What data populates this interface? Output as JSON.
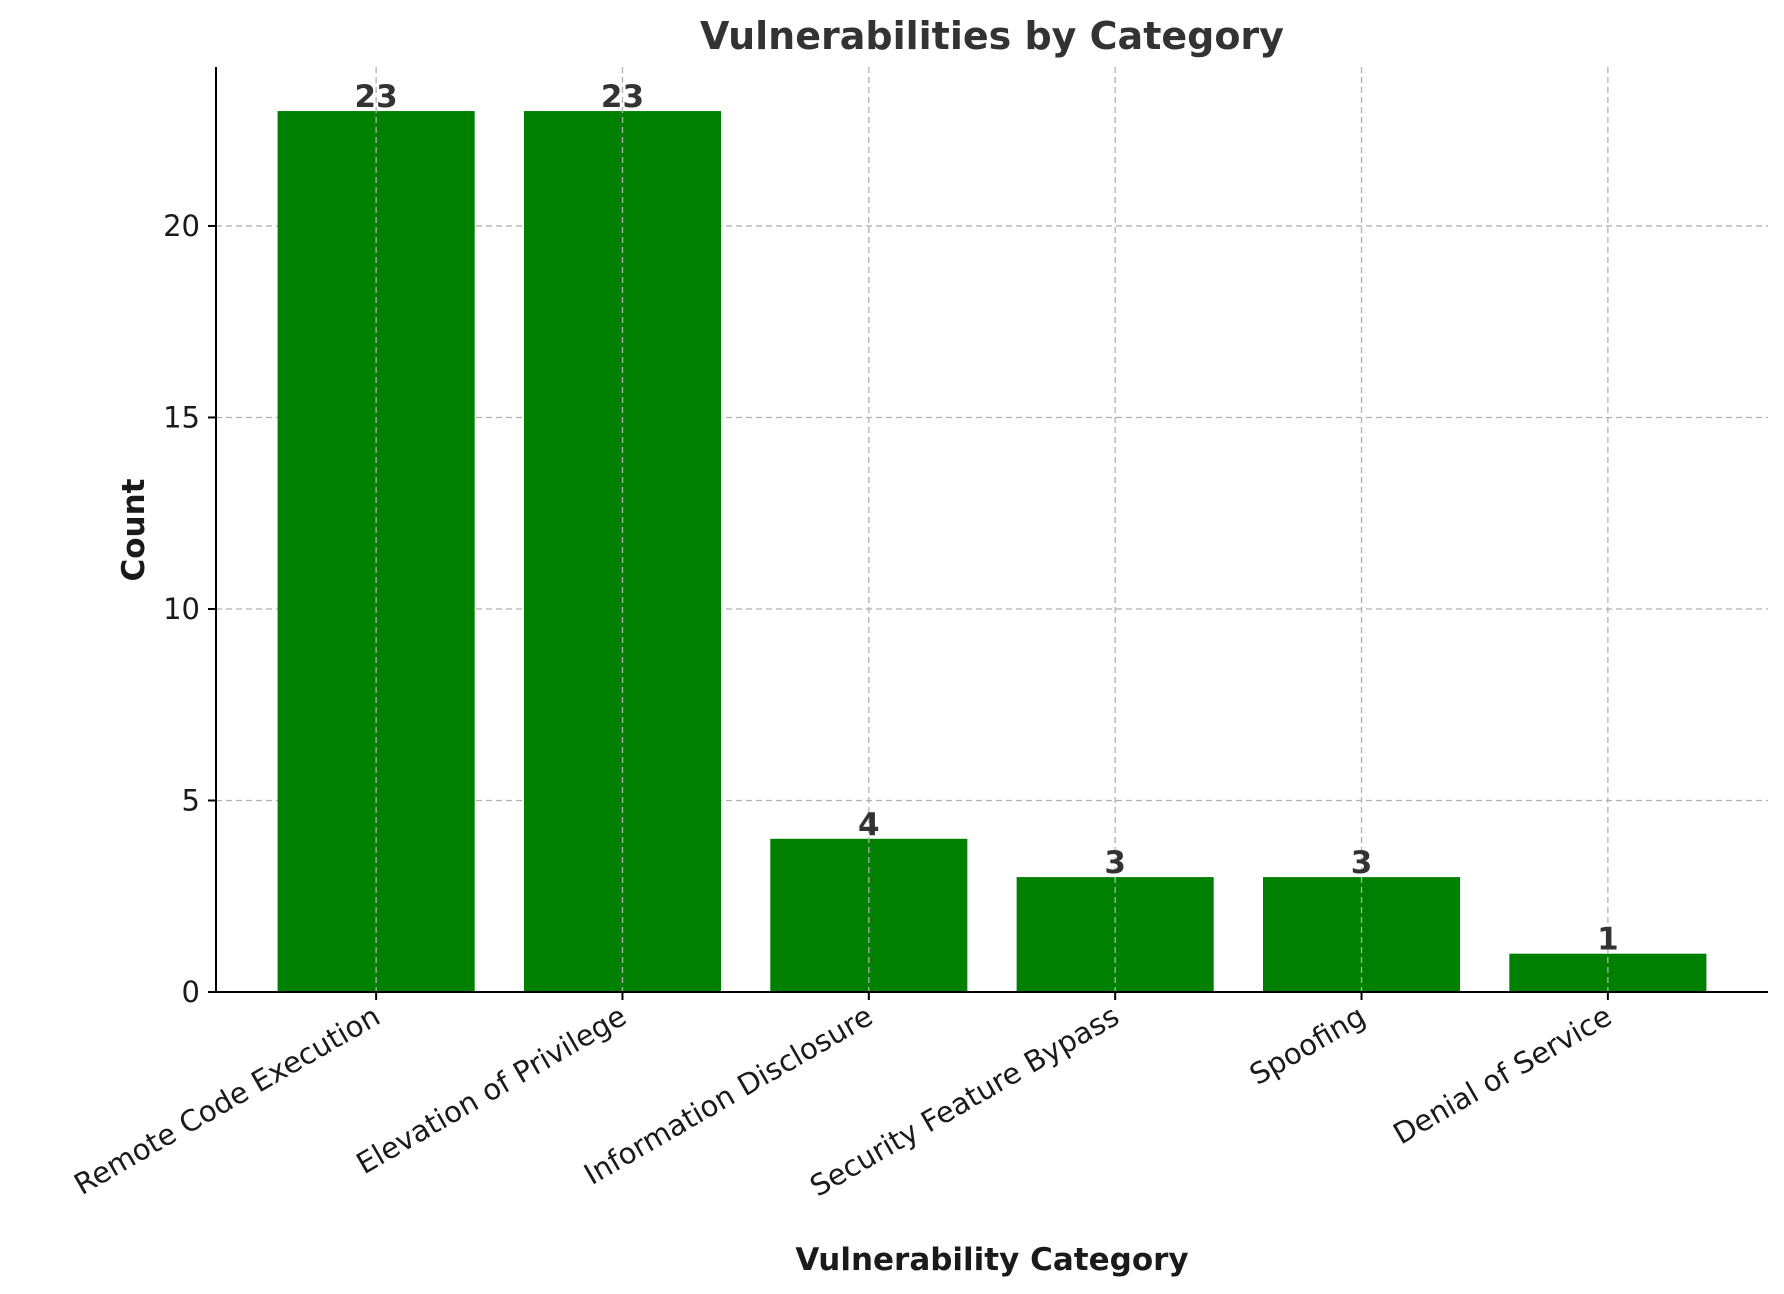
{
  "chart_data": {
    "type": "bar",
    "title": "Vulnerabilities by Category",
    "xlabel": "Vulnerability Category",
    "ylabel": "Count",
    "categories": [
      "Remote Code Execution",
      "Elevation of Privilege",
      "Information Disclosure",
      "Security Feature Bypass",
      "Spoofing",
      "Denial of Service"
    ],
    "values": [
      23,
      23,
      4,
      3,
      3,
      1
    ],
    "ylim": [
      0,
      24.15
    ],
    "yticks": [
      0,
      5,
      10,
      15,
      20
    ],
    "grid": true,
    "bar_color": "#008000",
    "data_labels": true
  }
}
